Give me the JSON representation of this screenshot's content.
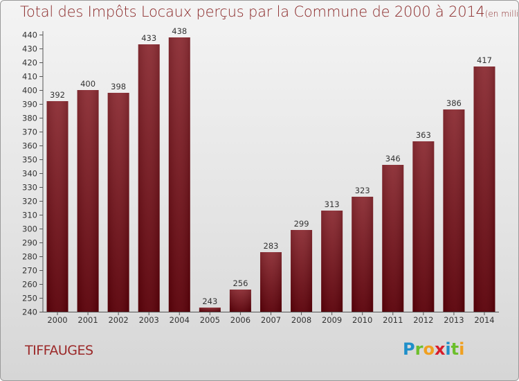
{
  "title": "Total des Impôts Locaux perçus par la Commune de 2000 à 2014",
  "unit": "(en milliers d'€)",
  "commune": "TIFFAUGES",
  "logo": {
    "letters": [
      "P",
      "r",
      "o",
      "x",
      "i",
      "t",
      "i"
    ]
  },
  "colors": {
    "bar_top": "#8b2c33",
    "bar_bottom": "#5a0008",
    "title": "#8b2a2a"
  },
  "chart_data": {
    "type": "bar",
    "categories": [
      "2000",
      "2001",
      "2002",
      "2003",
      "2004",
      "2005",
      "2006",
      "2007",
      "2008",
      "2009",
      "2010",
      "2011",
      "2012",
      "2013",
      "2014"
    ],
    "values": [
      392,
      400,
      398,
      433,
      438,
      243,
      256,
      283,
      299,
      313,
      323,
      346,
      363,
      386,
      417
    ],
    "ylim": [
      240,
      440
    ],
    "ytick_step": 10,
    "grid": false,
    "data_labels": true
  }
}
